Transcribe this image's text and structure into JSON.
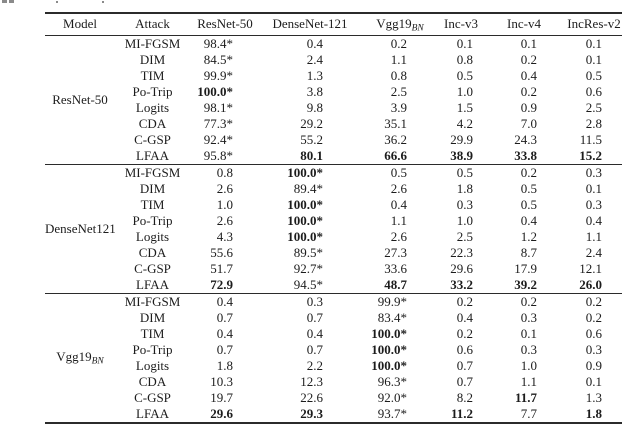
{
  "table": {
    "headers": [
      "Model",
      "Attack",
      "ResNet-50",
      "DenseNet-121",
      {
        "text": "Vgg19",
        "sub": "BN"
      },
      "Inc-v3",
      "Inc-v4",
      "IncRes-v2"
    ],
    "groups": [
      {
        "model": {
          "text": "ResNet-50"
        },
        "rows": [
          {
            "attack": "MI-FGSM",
            "values": [
              {
                "t": "98.4*"
              },
              {
                "t": "0.4"
              },
              {
                "t": "0.2"
              },
              {
                "t": "0.1"
              },
              {
                "t": "0.1"
              },
              {
                "t": "0.1"
              }
            ]
          },
          {
            "attack": "DIM",
            "values": [
              {
                "t": "84.5*"
              },
              {
                "t": "2.4"
              },
              {
                "t": "1.1"
              },
              {
                "t": "0.8"
              },
              {
                "t": "0.2"
              },
              {
                "t": "0.1"
              }
            ]
          },
          {
            "attack": "TIM",
            "values": [
              {
                "t": "99.9*"
              },
              {
                "t": "1.3"
              },
              {
                "t": "0.8"
              },
              {
                "t": "0.5"
              },
              {
                "t": "0.4"
              },
              {
                "t": "0.5"
              }
            ]
          },
          {
            "attack": "Po-Trip",
            "values": [
              {
                "t": "100.0*",
                "b": true
              },
              {
                "t": "3.8"
              },
              {
                "t": "2.5"
              },
              {
                "t": "1.0"
              },
              {
                "t": "0.2"
              },
              {
                "t": "0.6"
              }
            ]
          },
          {
            "attack": "Logits",
            "values": [
              {
                "t": "98.1*"
              },
              {
                "t": "9.8"
              },
              {
                "t": "3.9"
              },
              {
                "t": "1.5"
              },
              {
                "t": "0.9"
              },
              {
                "t": "2.5"
              }
            ]
          },
          {
            "attack": "CDA",
            "values": [
              {
                "t": "77.3*"
              },
              {
                "t": "29.2"
              },
              {
                "t": "35.1"
              },
              {
                "t": "4.2"
              },
              {
                "t": "7.0"
              },
              {
                "t": "2.8"
              }
            ]
          },
          {
            "attack": "C-GSP",
            "values": [
              {
                "t": "92.4*"
              },
              {
                "t": "55.2"
              },
              {
                "t": "36.2"
              },
              {
                "t": "29.9"
              },
              {
                "t": "24.3"
              },
              {
                "t": "11.5"
              }
            ]
          },
          {
            "attack": "LFAA",
            "values": [
              {
                "t": "95.8*"
              },
              {
                "t": "80.1",
                "b": true
              },
              {
                "t": "66.6",
                "b": true
              },
              {
                "t": "38.9",
                "b": true
              },
              {
                "t": "33.8",
                "b": true
              },
              {
                "t": "15.2",
                "b": true
              }
            ]
          }
        ]
      },
      {
        "model": {
          "text": "DenseNet121"
        },
        "rows": [
          {
            "attack": "MI-FGSM",
            "values": [
              {
                "t": "0.8"
              },
              {
                "t": "100.0*",
                "b": true
              },
              {
                "t": "0.5"
              },
              {
                "t": "0.5"
              },
              {
                "t": "0.2"
              },
              {
                "t": "0.3"
              }
            ]
          },
          {
            "attack": "DIM",
            "values": [
              {
                "t": "2.6"
              },
              {
                "t": "89.4*"
              },
              {
                "t": "2.6"
              },
              {
                "t": "1.8"
              },
              {
                "t": "0.5"
              },
              {
                "t": "0.1"
              }
            ]
          },
          {
            "attack": "TIM",
            "values": [
              {
                "t": "1.0"
              },
              {
                "t": "100.0*",
                "b": true
              },
              {
                "t": "0.4"
              },
              {
                "t": "0.3"
              },
              {
                "t": "0.5"
              },
              {
                "t": "0.3"
              }
            ]
          },
          {
            "attack": "Po-Trip",
            "values": [
              {
                "t": "2.6"
              },
              {
                "t": "100.0*",
                "b": true
              },
              {
                "t": "1.1"
              },
              {
                "t": "1.0"
              },
              {
                "t": "0.4"
              },
              {
                "t": "0.4"
              }
            ]
          },
          {
            "attack": "Logits",
            "values": [
              {
                "t": "4.3"
              },
              {
                "t": "100.0*",
                "b": true
              },
              {
                "t": "2.6"
              },
              {
                "t": "2.5"
              },
              {
                "t": "1.2"
              },
              {
                "t": "1.1"
              }
            ]
          },
          {
            "attack": "CDA",
            "values": [
              {
                "t": "55.6"
              },
              {
                "t": "89.5*"
              },
              {
                "t": "27.3"
              },
              {
                "t": "22.3"
              },
              {
                "t": "8.7"
              },
              {
                "t": "2.4"
              }
            ]
          },
          {
            "attack": "C-GSP",
            "values": [
              {
                "t": "51.7"
              },
              {
                "t": "92.7*"
              },
              {
                "t": "33.6"
              },
              {
                "t": "29.6"
              },
              {
                "t": "17.9"
              },
              {
                "t": "12.1"
              }
            ]
          },
          {
            "attack": "LFAA",
            "values": [
              {
                "t": "72.9",
                "b": true
              },
              {
                "t": "94.5*"
              },
              {
                "t": "48.7",
                "b": true
              },
              {
                "t": "33.2",
                "b": true
              },
              {
                "t": "39.2",
                "b": true
              },
              {
                "t": "26.0",
                "b": true
              }
            ]
          }
        ]
      },
      {
        "model": {
          "text": "Vgg19",
          "sub": "BN"
        },
        "rows": [
          {
            "attack": "MI-FGSM",
            "values": [
              {
                "t": "0.4"
              },
              {
                "t": "0.3"
              },
              {
                "t": "99.9*"
              },
              {
                "t": "0.2"
              },
              {
                "t": "0.2"
              },
              {
                "t": "0.2"
              }
            ]
          },
          {
            "attack": "DIM",
            "values": [
              {
                "t": "0.7"
              },
              {
                "t": "0.7"
              },
              {
                "t": "83.4*"
              },
              {
                "t": "0.4"
              },
              {
                "t": "0.3"
              },
              {
                "t": "0.2"
              }
            ]
          },
          {
            "attack": "TIM",
            "values": [
              {
                "t": "0.4"
              },
              {
                "t": "0.4"
              },
              {
                "t": "100.0*",
                "b": true
              },
              {
                "t": "0.2"
              },
              {
                "t": "0.1"
              },
              {
                "t": "0.6"
              }
            ]
          },
          {
            "attack": "Po-Trip",
            "values": [
              {
                "t": "0.7"
              },
              {
                "t": "0.7"
              },
              {
                "t": "100.0*",
                "b": true
              },
              {
                "t": "0.6"
              },
              {
                "t": "0.3"
              },
              {
                "t": "0.3"
              }
            ]
          },
          {
            "attack": "Logits",
            "values": [
              {
                "t": "1.8"
              },
              {
                "t": "2.2"
              },
              {
                "t": "100.0*",
                "b": true
              },
              {
                "t": "0.7"
              },
              {
                "t": "1.0"
              },
              {
                "t": "0.9"
              }
            ]
          },
          {
            "attack": "CDA",
            "values": [
              {
                "t": "10.3"
              },
              {
                "t": "12.3"
              },
              {
                "t": "96.3*"
              },
              {
                "t": "0.7"
              },
              {
                "t": "1.1"
              },
              {
                "t": "0.1"
              }
            ]
          },
          {
            "attack": "C-GSP",
            "values": [
              {
                "t": "19.7"
              },
              {
                "t": "22.6"
              },
              {
                "t": "92.0*"
              },
              {
                "t": "8.2"
              },
              {
                "t": "11.7",
                "b": true
              },
              {
                "t": "1.3"
              }
            ]
          },
          {
            "attack": "LFAA",
            "values": [
              {
                "t": "29.6",
                "b": true
              },
              {
                "t": "29.3",
                "b": true
              },
              {
                "t": "93.7*"
              },
              {
                "t": "11.2",
                "b": true
              },
              {
                "t": "7.7"
              },
              {
                "t": "1.8",
                "b": true
              }
            ]
          }
        ]
      }
    ]
  }
}
